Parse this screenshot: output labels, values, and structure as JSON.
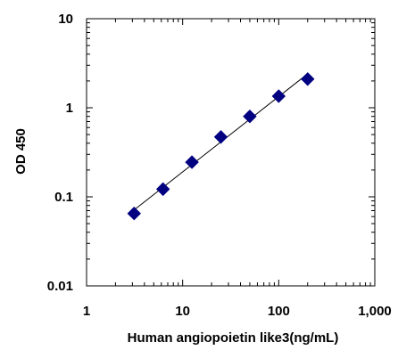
{
  "chart_data": {
    "type": "scatter",
    "title": "",
    "xlabel": "Human angiopoietin like3(ng/mL)",
    "ylabel": "OD 450",
    "x_scale": "log",
    "y_scale": "log",
    "xlim": [
      1,
      1000
    ],
    "ylim": [
      0.01,
      10
    ],
    "x_ticks": [
      1,
      10,
      100,
      1000
    ],
    "x_tick_labels": [
      "1",
      "10",
      "100",
      "1,000"
    ],
    "y_ticks": [
      0.01,
      0.1,
      1,
      10
    ],
    "y_tick_labels": [
      "0.01",
      "0.1",
      "1",
      "10"
    ],
    "grid": false,
    "legend": "none",
    "series": [
      {
        "marker": "diamond",
        "color": "#000080",
        "x": [
          3.125,
          6.25,
          12.5,
          25,
          50,
          100,
          200
        ],
        "y": [
          0.065,
          0.122,
          0.245,
          0.47,
          0.8,
          1.35,
          2.1
        ]
      }
    ],
    "fit_line": {
      "type": "power",
      "color": "#000000"
    }
  }
}
